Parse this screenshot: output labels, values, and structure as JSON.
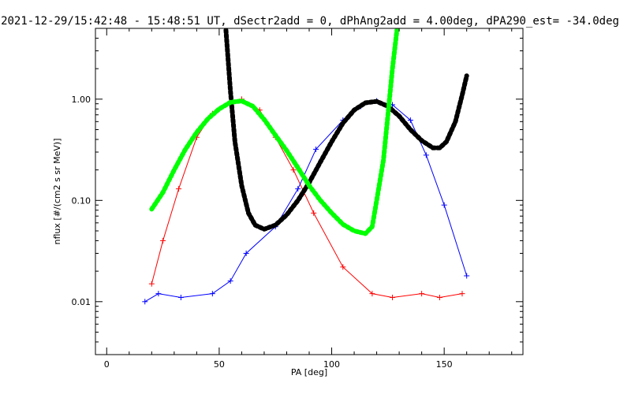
{
  "chart_data": {
    "type": "line",
    "title": "2021-12-29/15:42:48 - 15:48:51 UT, dSectr2add = 0, dPhAng2add = 4.00deg, dPA290_est= -34.0deg",
    "xlabel": "PA [deg]",
    "ylabel": "nflux [#/(cm2 s sr MeV)]",
    "xlim": [
      -5,
      185
    ],
    "ylim": [
      0.003,
      5.0
    ],
    "yscale": "log",
    "x_ticks": [
      0,
      50,
      100,
      150
    ],
    "y_ticks": [
      0.01,
      0.1,
      1.0
    ],
    "x_tick_labels": [
      "0",
      "50",
      "100",
      "150"
    ],
    "y_tick_labels": [
      "0.01",
      "0.10",
      "1.00"
    ],
    "grid": false,
    "colors": {
      "red_series": "#ff0000",
      "blue_series": "#0000ff",
      "black_fit": "#000000",
      "green_fit": "#00ff00"
    },
    "series": [
      {
        "color": "#ff0000",
        "style": "line+plus",
        "x": [
          20,
          25,
          32,
          40,
          47,
          55,
          60,
          68,
          75,
          83,
          92,
          105,
          118,
          127,
          140,
          148,
          158
        ],
        "y": [
          0.015,
          0.04,
          0.13,
          0.42,
          0.72,
          0.95,
          1.0,
          0.78,
          0.42,
          0.2,
          0.075,
          0.022,
          0.012,
          0.011,
          0.012,
          0.011,
          0.012
        ]
      },
      {
        "color": "#0000ff",
        "style": "line+plus",
        "x": [
          17,
          23,
          33,
          47,
          55,
          62,
          75,
          85,
          93,
          105,
          113,
          120,
          127,
          135,
          142,
          150,
          160
        ],
        "y": [
          0.01,
          0.012,
          0.011,
          0.012,
          0.016,
          0.03,
          0.055,
          0.13,
          0.32,
          0.62,
          0.85,
          0.96,
          0.88,
          0.62,
          0.28,
          0.09,
          0.018
        ]
      },
      {
        "name": "black fit",
        "color": "#000000",
        "style": "dots",
        "x": [
          53,
          55,
          57,
          60,
          63,
          66,
          70,
          75,
          80,
          85,
          90,
          95,
          100,
          105,
          110,
          115,
          120,
          125,
          130,
          135,
          140,
          145,
          148,
          151,
          155,
          158,
          160
        ],
        "y": [
          4.8,
          1.2,
          0.38,
          0.14,
          0.075,
          0.057,
          0.052,
          0.057,
          0.072,
          0.1,
          0.15,
          0.24,
          0.38,
          0.58,
          0.78,
          0.92,
          0.95,
          0.85,
          0.68,
          0.5,
          0.39,
          0.33,
          0.33,
          0.38,
          0.6,
          1.1,
          1.7
        ]
      },
      {
        "name": "green fit",
        "color": "#00ff00",
        "style": "dots",
        "x": [
          20,
          25,
          30,
          35,
          40,
          45,
          50,
          55,
          60,
          65,
          70,
          75,
          80,
          85,
          90,
          95,
          100,
          105,
          110,
          115,
          118,
          120,
          123,
          125,
          127,
          129
        ],
        "y": [
          0.082,
          0.12,
          0.2,
          0.32,
          0.47,
          0.64,
          0.8,
          0.93,
          0.96,
          0.85,
          0.63,
          0.44,
          0.31,
          0.21,
          0.14,
          0.1,
          0.075,
          0.058,
          0.05,
          0.047,
          0.055,
          0.1,
          0.25,
          0.7,
          2.0,
          4.8
        ]
      }
    ]
  }
}
